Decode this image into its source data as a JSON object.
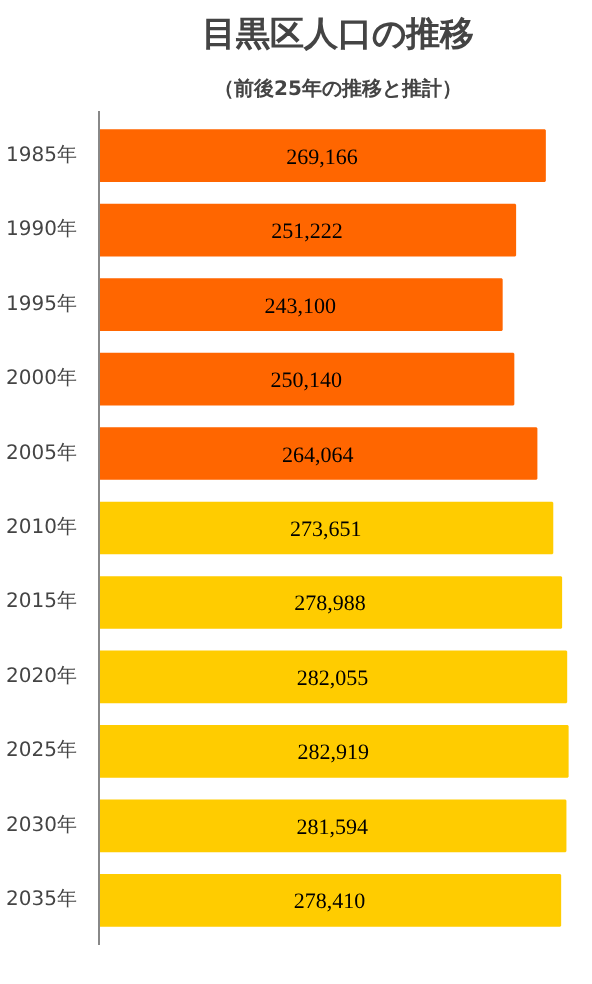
{
  "chart_data": {
    "type": "bar",
    "orientation": "horizontal",
    "title": "目黒区人口の推移",
    "subtitle": "（前後25年の推移と推計）",
    "categories": [
      "1985年",
      "1990年",
      "1995年",
      "2000年",
      "2005年",
      "2010年",
      "2015年",
      "2020年",
      "2025年",
      "2030年",
      "2035年"
    ],
    "values": [
      269166,
      251222,
      243100,
      250140,
      264064,
      273651,
      278988,
      282055,
      282919,
      281594,
      278410
    ],
    "value_labels": [
      "269,166",
      "251,222",
      "243,100",
      "250,140",
      "264,064",
      "273,651",
      "278,988",
      "282,055",
      "282,919",
      "281,594",
      "278,410"
    ],
    "colors": [
      "#ff6600",
      "#ff6600",
      "#ff6600",
      "#ff6600",
      "#ff6600",
      "#ffcc00",
      "#ffcc00",
      "#ffcc00",
      "#ffcc00",
      "#ffcc00",
      "#ffcc00"
    ],
    "tick_labels": "y"
  }
}
